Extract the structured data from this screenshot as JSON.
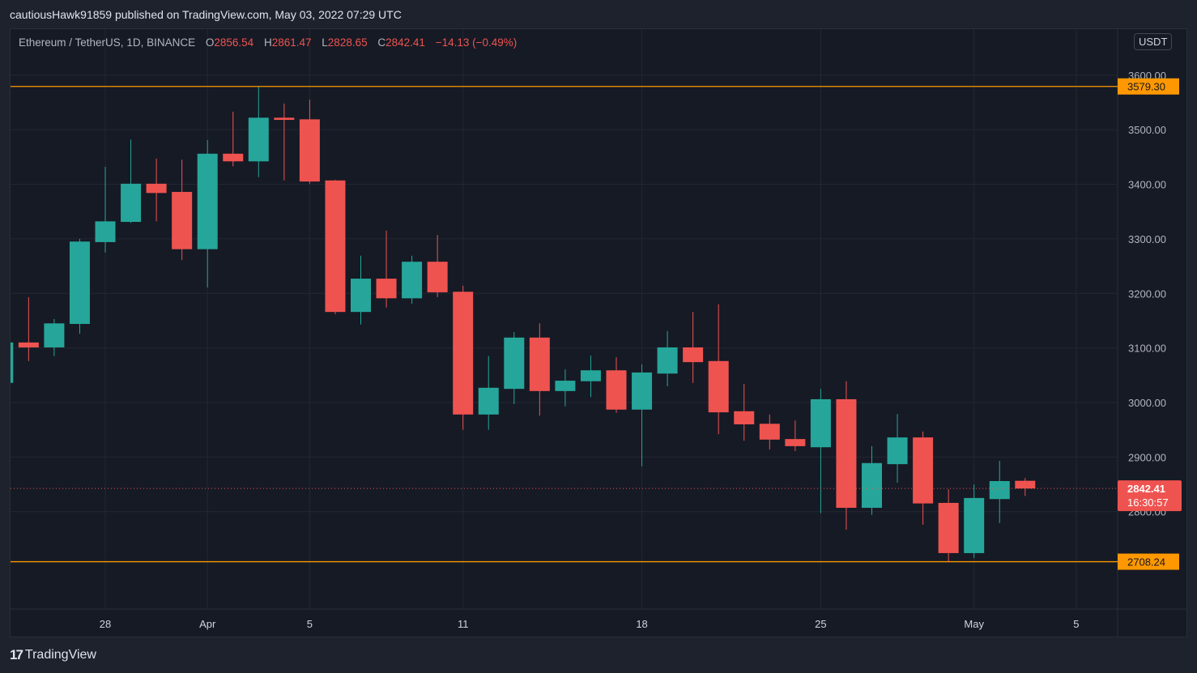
{
  "header": {
    "publisher_line": "cautiousHawk91859 published on TradingView.com, May 03, 2022 07:29 UTC"
  },
  "legend": {
    "symbol": "Ethereum / TetherUS, 1D, BINANCE",
    "open_label": "O",
    "open": "2856.54",
    "high_label": "H",
    "high": "2861.47",
    "low_label": "L",
    "low": "2828.65",
    "close_label": "C",
    "close": "2842.41",
    "change": "−14.13 (−0.49%)"
  },
  "price_axis": {
    "unit": "USDT"
  },
  "footer": {
    "brand": "TradingView",
    "logo_text": "17"
  },
  "colors": {
    "up": "#26a69a",
    "down": "#ef5350",
    "hline": "#ff9800",
    "grid": "#232734",
    "bg": "#161a25"
  },
  "chart_data": {
    "type": "candlestick",
    "title": "Ethereum / TetherUS, 1D, BINANCE",
    "ylim": [
      2620,
      3680
    ],
    "grid": true,
    "y_ticks": [
      "2800.00",
      "2900.00",
      "3000.00",
      "3100.00",
      "3200.00",
      "3300.00",
      "3400.00",
      "3500.00",
      "3600.00"
    ],
    "x_ticks": [
      {
        "date": "2022-03-28",
        "label": "28"
      },
      {
        "date": "2022-04-01",
        "label": "Apr"
      },
      {
        "date": "2022-04-05",
        "label": "5"
      },
      {
        "date": "2022-04-11",
        "label": "11"
      },
      {
        "date": "2022-04-18",
        "label": "18"
      },
      {
        "date": "2022-04-25",
        "label": "25"
      },
      {
        "date": "2022-05-01",
        "label": "May"
      },
      {
        "date": "2022-05-05",
        "label": "5"
      }
    ],
    "horizontal_lines": [
      {
        "value": 3579.3,
        "label": "3579.30"
      },
      {
        "value": 2708.24,
        "label": "2708.24"
      }
    ],
    "last_price": {
      "value": 2842.41,
      "label": "2842.41",
      "countdown": "16:30:57"
    },
    "candles": [
      {
        "date": "2022-03-24",
        "o": 3036,
        "h": 3115,
        "l": 3030,
        "c": 3110
      },
      {
        "date": "2022-03-25",
        "o": 3110,
        "h": 3193,
        "l": 3076,
        "c": 3101
      },
      {
        "date": "2022-03-26",
        "o": 3101,
        "h": 3153,
        "l": 3085,
        "c": 3145
      },
      {
        "date": "2022-03-27",
        "o": 3144,
        "h": 3300,
        "l": 3126,
        "c": 3295
      },
      {
        "date": "2022-03-28",
        "o": 3294,
        "h": 3432,
        "l": 3275,
        "c": 3332
      },
      {
        "date": "2022-03-29",
        "o": 3331,
        "h": 3482,
        "l": 3329,
        "c": 3401
      },
      {
        "date": "2022-03-30",
        "o": 3401,
        "h": 3447,
        "l": 3332,
        "c": 3384
      },
      {
        "date": "2022-03-31",
        "o": 3386,
        "h": 3445,
        "l": 3261,
        "c": 3281
      },
      {
        "date": "2022-04-01",
        "o": 3281,
        "h": 3481,
        "l": 3211,
        "c": 3456
      },
      {
        "date": "2022-04-02",
        "o": 3456,
        "h": 3533,
        "l": 3433,
        "c": 3442
      },
      {
        "date": "2022-04-03",
        "o": 3442,
        "h": 3579,
        "l": 3413,
        "c": 3522
      },
      {
        "date": "2022-04-04",
        "o": 3522,
        "h": 3548,
        "l": 3407,
        "c": 3518
      },
      {
        "date": "2022-04-05",
        "o": 3519,
        "h": 3555,
        "l": 3401,
        "c": 3405
      },
      {
        "date": "2022-04-06",
        "o": 3407,
        "h": 3408,
        "l": 3162,
        "c": 3166
      },
      {
        "date": "2022-04-07",
        "o": 3166,
        "h": 3269,
        "l": 3143,
        "c": 3227
      },
      {
        "date": "2022-04-08",
        "o": 3227,
        "h": 3315,
        "l": 3174,
        "c": 3191
      },
      {
        "date": "2022-04-09",
        "o": 3191,
        "h": 3269,
        "l": 3181,
        "c": 3258
      },
      {
        "date": "2022-04-10",
        "o": 3258,
        "h": 3307,
        "l": 3193,
        "c": 3202
      },
      {
        "date": "2022-04-11",
        "o": 3203,
        "h": 3214,
        "l": 2950,
        "c": 2978
      },
      {
        "date": "2022-04-12",
        "o": 2978,
        "h": 3085,
        "l": 2950,
        "c": 3027
      },
      {
        "date": "2022-04-13",
        "o": 3025,
        "h": 3129,
        "l": 2997,
        "c": 3119
      },
      {
        "date": "2022-04-14",
        "o": 3119,
        "h": 3145,
        "l": 2976,
        "c": 3021
      },
      {
        "date": "2022-04-15",
        "o": 3021,
        "h": 3061,
        "l": 2993,
        "c": 3040
      },
      {
        "date": "2022-04-16",
        "o": 3039,
        "h": 3086,
        "l": 3010,
        "c": 3059
      },
      {
        "date": "2022-04-17",
        "o": 3059,
        "h": 3083,
        "l": 2981,
        "c": 2987
      },
      {
        "date": "2022-04-18",
        "o": 2987,
        "h": 3070,
        "l": 2883,
        "c": 3055
      },
      {
        "date": "2022-04-19",
        "o": 3053,
        "h": 3131,
        "l": 3030,
        "c": 3101
      },
      {
        "date": "2022-04-20",
        "o": 3101,
        "h": 3166,
        "l": 3036,
        "c": 3074
      },
      {
        "date": "2022-04-21",
        "o": 3076,
        "h": 3180,
        "l": 2942,
        "c": 2982
      },
      {
        "date": "2022-04-22",
        "o": 2984,
        "h": 3034,
        "l": 2930,
        "c": 2960
      },
      {
        "date": "2022-04-23",
        "o": 2961,
        "h": 2978,
        "l": 2914,
        "c": 2932
      },
      {
        "date": "2022-04-24",
        "o": 2933,
        "h": 2967,
        "l": 2911,
        "c": 2920
      },
      {
        "date": "2022-04-25",
        "o": 2918,
        "h": 3025,
        "l": 2797,
        "c": 3006
      },
      {
        "date": "2022-04-26",
        "o": 3006,
        "h": 3039,
        "l": 2767,
        "c": 2807
      },
      {
        "date": "2022-04-27",
        "o": 2807,
        "h": 2920,
        "l": 2794,
        "c": 2889
      },
      {
        "date": "2022-04-28",
        "o": 2887,
        "h": 2979,
        "l": 2853,
        "c": 2936
      },
      {
        "date": "2022-04-29",
        "o": 2936,
        "h": 2947,
        "l": 2776,
        "c": 2815
      },
      {
        "date": "2022-04-30",
        "o": 2816,
        "h": 2841,
        "l": 2709,
        "c": 2724
      },
      {
        "date": "2022-05-01",
        "o": 2724,
        "h": 2850,
        "l": 2715,
        "c": 2825
      },
      {
        "date": "2022-05-02",
        "o": 2823,
        "h": 2893,
        "l": 2779,
        "c": 2856
      },
      {
        "date": "2022-05-03",
        "o": 2856.54,
        "h": 2861.47,
        "l": 2828.65,
        "c": 2842.41
      }
    ]
  }
}
